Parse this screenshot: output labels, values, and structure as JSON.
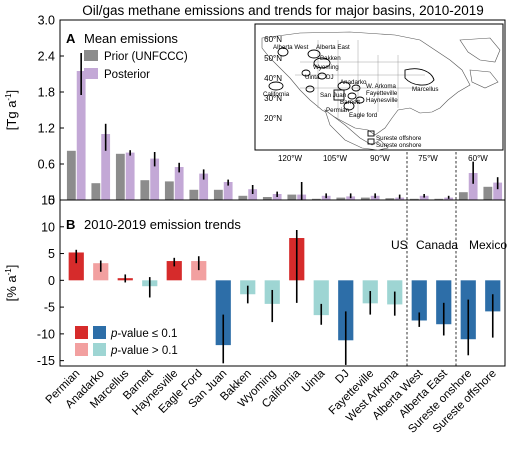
{
  "title": "Oil/gas methane emissions and trends for major basins, 2010-2019",
  "colors": {
    "prior": "#8c8c8c",
    "posterior": "#c3a8d6",
    "sig_red": "#d62b2b",
    "nonsig_red": "#f2a0a0",
    "sig_blue": "#2d6ea8",
    "nonsig_blue": "#9ed5d3",
    "errorbar": "#000000"
  },
  "chart_data": [
    {
      "panel": "A",
      "type": "bar",
      "title": "Mean emissions",
      "ylabel": "[Tg a",
      "ylabel_sup": "-1",
      "ylabel_end": "]",
      "ylim": [
        0,
        3.0
      ],
      "yticks": [
        "0",
        "0.6",
        "1.2",
        "1.8",
        "2.4",
        "3.0"
      ],
      "ytick_values": [
        0,
        0.6,
        1.2,
        1.8,
        2.4,
        3.0
      ],
      "grid": false,
      "legend_position": "top-left",
      "series": [
        {
          "name": "Prior (UNFCCC)",
          "values": [
            0.82,
            0.28,
            0.77,
            0.33,
            0.31,
            0.17,
            0.17,
            0.07,
            0.05,
            0.09,
            0.02,
            0.04,
            0.04,
            0.03,
            0.02,
            0.02,
            0.13,
            0.22
          ]
        },
        {
          "name": "Posterior",
          "values": [
            2.15,
            1.1,
            0.79,
            0.69,
            0.55,
            0.44,
            0.3,
            0.18,
            0.1,
            0.09,
            0.07,
            0.06,
            0.07,
            0.04,
            0.07,
            0.04,
            0.45,
            0.29
          ],
          "err_low": [
            1.75,
            0.82,
            0.74,
            0.56,
            0.46,
            0.34,
            0.24,
            0.1,
            0.05,
            0.0,
            0.03,
            0.03,
            0.03,
            0.02,
            0.04,
            0.02,
            0.27,
            0.18
          ],
          "err_high": [
            2.45,
            1.27,
            0.83,
            0.8,
            0.62,
            0.51,
            0.34,
            0.25,
            0.14,
            0.3,
            0.11,
            0.11,
            0.11,
            0.09,
            0.1,
            0.07,
            0.64,
            0.38
          ]
        }
      ]
    },
    {
      "panel": "B",
      "type": "bar",
      "title": "2010-2019 emission trends",
      "ylabel": "[% a",
      "ylabel_sup": "-1",
      "ylabel_end": "]",
      "ylim": [
        -16,
        15
      ],
      "yticks": [
        "-15",
        "-10",
        "-5",
        "0",
        "5",
        "10",
        "15"
      ],
      "ytick_values": [
        -15,
        -10,
        -5,
        0,
        5,
        10,
        15
      ],
      "grid": false,
      "legend_position": "bottom-left",
      "legend": [
        {
          "label_prefix": "p",
          "label_suffix": "-value ≤ 0.1",
          "colors": [
            "sig_red",
            "sig_blue"
          ]
        },
        {
          "label_prefix": "p",
          "label_suffix": "-value > 0.1",
          "colors": [
            "nonsig_red",
            "nonsig_blue"
          ]
        }
      ],
      "categories": [
        "Permian",
        "Anadarko",
        "Marcellus",
        "Barnett",
        "Haynesville",
        "Eagle Ford",
        "San Juan",
        "Bakken",
        "Wyoming",
        "California",
        "Uinta",
        "DJ",
        "Fayetteville",
        "West Arkoma",
        "Alberta West",
        "Alberta East",
        "Sureste onshore",
        "Sureste offshore"
      ],
      "values": [
        5.2,
        3.2,
        0.4,
        -1.1,
        3.6,
        3.6,
        -12.1,
        -2.6,
        -4.4,
        7.9,
        -6.5,
        -11.2,
        -4.3,
        -4.5,
        -7.5,
        -8.2,
        -11.0,
        -5.8
      ],
      "err_low": [
        3.2,
        1.6,
        -0.4,
        -3.2,
        2.6,
        1.9,
        -15.5,
        -4.3,
        -7.8,
        -4.2,
        -8.3,
        -15.8,
        -6.4,
        -6.6,
        -8.7,
        -10.3,
        -14.0,
        -10.7
      ],
      "err_high": [
        5.7,
        3.7,
        1.1,
        0.6,
        4.2,
        4.5,
        -6.4,
        -1.0,
        -1.8,
        9.4,
        -4.4,
        -5.8,
        -2.0,
        -2.1,
        -6.0,
        -4.2,
        -3.6,
        -2.6
      ],
      "significant": [
        true,
        false,
        true,
        false,
        true,
        false,
        true,
        false,
        false,
        true,
        false,
        true,
        false,
        false,
        true,
        true,
        true,
        true
      ],
      "direction": [
        "up",
        "up",
        "up",
        "down",
        "up",
        "up",
        "down",
        "down",
        "down",
        "up",
        "down",
        "down",
        "down",
        "down",
        "down",
        "down",
        "down",
        "down"
      ],
      "region_labels": [
        "US",
        "Canada",
        "Mexico"
      ]
    }
  ],
  "map": {
    "lat_labels": [
      "60°N",
      "50°N",
      "40°N",
      "30°N",
      "20°N"
    ],
    "lon_labels": [
      "120°W",
      "105°W",
      "90°W",
      "75°W",
      "60°W"
    ],
    "basin_labels": [
      "Alberta West",
      "Alberta East",
      "Bakken",
      "Wyoming",
      "Uinta",
      "DJ",
      "California",
      "Anadarko",
      "San Juan",
      "W. Arkoma",
      "Fayetteville",
      "Haynesville",
      "Barnett",
      "Permian",
      "Eagle ford",
      "Marcellus",
      "Sureste offshore",
      "Sureste onshore"
    ]
  }
}
